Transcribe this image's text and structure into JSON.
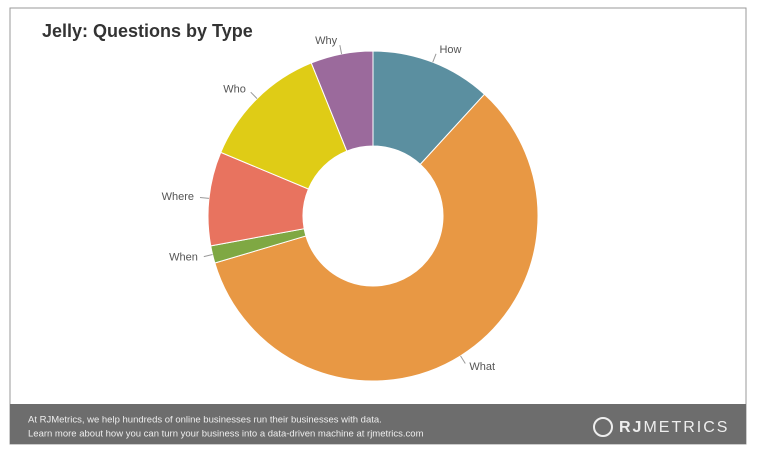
{
  "chart_data": {
    "type": "pie",
    "title": "Jelly: Questions by Type",
    "categories": [
      "How",
      "What",
      "When",
      "Where",
      "Who",
      "Why"
    ],
    "values": [
      11.8,
      58.6,
      1.7,
      9.2,
      12.6,
      6.1
    ],
    "colors": [
      "#5b8fa0",
      "#e89844",
      "#7fa843",
      "#e8735f",
      "#dfcc16",
      "#9b6a9c"
    ]
  },
  "footer": {
    "lines": [
      "At RJMetrics, we help hundreds of online businesses run their businesses with data.",
      "Learn more about how you can turn your business into a data-driven machine at rjmetrics.com"
    ],
    "logo": [
      "RJ",
      "METRICS"
    ]
  }
}
